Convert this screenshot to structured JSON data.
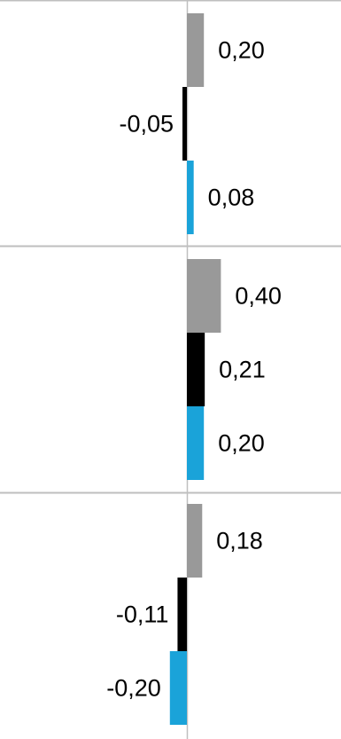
{
  "chart_data": {
    "type": "bar",
    "orientation": "horizontal",
    "groups": [
      {
        "bars": [
          {
            "value": 0.2,
            "label": "0,20",
            "color": "#999999"
          },
          {
            "value": -0.05,
            "label": "-0,05",
            "color": "#000000"
          },
          {
            "value": 0.08,
            "label": "0,08",
            "color": "#1aa3d9"
          }
        ]
      },
      {
        "bars": [
          {
            "value": 0.4,
            "label": "0,40",
            "color": "#999999"
          },
          {
            "value": 0.21,
            "label": "0,21",
            "color": "#000000"
          },
          {
            "value": 0.2,
            "label": "0,20",
            "color": "#1aa3d9"
          }
        ]
      },
      {
        "bars": [
          {
            "value": 0.18,
            "label": "0,18",
            "color": "#999999"
          },
          {
            "value": -0.11,
            "label": "-0,11",
            "color": "#000000"
          },
          {
            "value": -0.2,
            "label": "-0,20",
            "color": "#1aa3d9"
          }
        ]
      }
    ],
    "gridlines": true,
    "legend": "none",
    "colors": {
      "series_gray": "#999999",
      "series_black": "#000000",
      "series_blue": "#1aa3d9",
      "axis": "#bfbfbf"
    }
  }
}
